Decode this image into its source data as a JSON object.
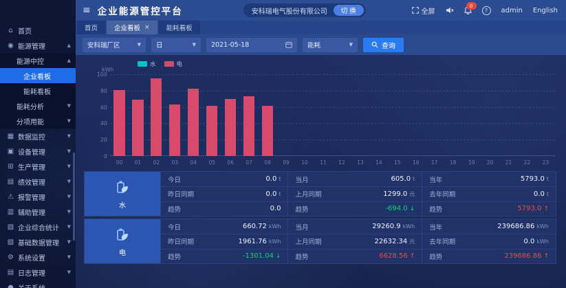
{
  "header": {
    "title": "企业能源管控平台",
    "company": "安科瑞电气股份有限公司",
    "switch_label": "切 换",
    "fullscreen_label": "全屏",
    "bell_badge": "0",
    "user": "admin",
    "language": "English"
  },
  "tabs": [
    {
      "id": "home",
      "label": "首页",
      "closable": false,
      "active": false
    },
    {
      "id": "enterprise-board",
      "label": "企业看板",
      "closable": true,
      "active": true
    },
    {
      "id": "energy-board",
      "label": "能耗看板",
      "closable": false,
      "active": false
    }
  ],
  "filters": {
    "area": "安科瑞厂区",
    "period": "日",
    "date": "2021-05-18",
    "type": "能耗",
    "search_label": "查询"
  },
  "sidebar": {
    "items": [
      {
        "id": "home",
        "label": "首页",
        "level": 1,
        "icon": "home",
        "caret": "",
        "active": false
      },
      {
        "id": "energy-mgmt",
        "label": "能源管理",
        "level": 1,
        "icon": "energy",
        "caret": "up",
        "active": false
      },
      {
        "id": "energy-center",
        "label": "能源中控",
        "level": 2,
        "icon": "",
        "caret": "up",
        "active": false
      },
      {
        "id": "enterprise-board",
        "label": "企业看板",
        "level": 3,
        "icon": "",
        "caret": "",
        "active": true
      },
      {
        "id": "energy-board",
        "label": "能耗看板",
        "level": 3,
        "icon": "",
        "caret": "",
        "active": false
      },
      {
        "id": "energy-analysis",
        "label": "能耗分析",
        "level": 2,
        "icon": "",
        "caret": "down",
        "active": false
      },
      {
        "id": "subitem-energy",
        "label": "分项用能",
        "level": 2,
        "icon": "",
        "caret": "down",
        "active": false
      },
      {
        "id": "data-monitor",
        "label": "数据监控",
        "level": 1,
        "icon": "monitor",
        "caret": "down",
        "active": false
      },
      {
        "id": "device-mgmt",
        "label": "设备管理",
        "level": 1,
        "icon": "device",
        "caret": "down",
        "active": false
      },
      {
        "id": "production-mgmt",
        "label": "生产管理",
        "level": 1,
        "icon": "production",
        "caret": "down",
        "active": false
      },
      {
        "id": "performance-mgmt",
        "label": "绩效管理",
        "level": 1,
        "icon": "performance",
        "caret": "down",
        "active": false
      },
      {
        "id": "alarm-mgmt",
        "label": "报警管理",
        "level": 1,
        "icon": "alarm",
        "caret": "down",
        "active": false
      },
      {
        "id": "assist-mgmt",
        "label": "辅助管理",
        "level": 1,
        "icon": "assist",
        "caret": "down",
        "active": false
      },
      {
        "id": "enterprise-stats",
        "label": "企业综合统计",
        "level": 1,
        "icon": "stats",
        "caret": "down",
        "active": false
      },
      {
        "id": "base-data-mgmt",
        "label": "基础数据管理",
        "level": 1,
        "icon": "database",
        "caret": "down",
        "active": false
      },
      {
        "id": "system-settings",
        "label": "系统设置",
        "level": 1,
        "icon": "settings",
        "caret": "down",
        "active": false
      },
      {
        "id": "log-mgmt",
        "label": "日志管理",
        "level": 1,
        "icon": "log",
        "caret": "down",
        "active": false
      },
      {
        "id": "about-system",
        "label": "关于系统",
        "level": 1,
        "icon": "about",
        "caret": "",
        "active": false
      }
    ]
  },
  "chart_data": {
    "type": "bar",
    "ylabel": "kWh",
    "ylim": [
      0,
      100
    ],
    "yticks": [
      0,
      20,
      40,
      60,
      80,
      100
    ],
    "grid": "dashed-horizontal",
    "legend_position": "top",
    "x": [
      "00",
      "01",
      "02",
      "03",
      "04",
      "05",
      "06",
      "07",
      "08",
      "09",
      "10",
      "11",
      "12",
      "13",
      "14",
      "15",
      "16",
      "17",
      "18",
      "19",
      "20",
      "21",
      "22",
      "23"
    ],
    "series": [
      {
        "name": "水",
        "color": "#00c2cc",
        "values": []
      },
      {
        "name": "电",
        "color": "#d84a6b",
        "values": [
          81,
          69,
          95,
          63,
          82,
          61,
          70,
          73,
          61
        ]
      }
    ]
  },
  "tables": [
    {
      "id": "water",
      "label": "水",
      "icon": "water-energy",
      "metrics": [
        {
          "label": "今日",
          "value": "0.0",
          "unit": "t",
          "dir": ""
        },
        {
          "label": "当月",
          "value": "605.0",
          "unit": "t",
          "dir": ""
        },
        {
          "label": "当年",
          "value": "5793.0",
          "unit": "t",
          "dir": ""
        },
        {
          "label": "昨日同期",
          "value": "0.0",
          "unit": "t",
          "dir": ""
        },
        {
          "label": "上月同期",
          "value": "1299.0",
          "unit": "元",
          "dir": ""
        },
        {
          "label": "去年同期",
          "value": "0.0",
          "unit": "t",
          "dir": ""
        },
        {
          "label": "趋势",
          "value": "0.0",
          "unit": "",
          "dir": ""
        },
        {
          "label": "趋势",
          "value": "-694.0",
          "unit": "",
          "dir": "down"
        },
        {
          "label": "趋势",
          "value": "5793.0",
          "unit": "",
          "dir": "up"
        }
      ]
    },
    {
      "id": "electricity",
      "label": "电",
      "icon": "electric-energy",
      "metrics": [
        {
          "label": "今日",
          "value": "660.72",
          "unit": "kWh",
          "dir": ""
        },
        {
          "label": "当月",
          "value": "29260.9",
          "unit": "kWh",
          "dir": ""
        },
        {
          "label": "当年",
          "value": "239686.86",
          "unit": "kWh",
          "dir": ""
        },
        {
          "label": "昨日同期",
          "value": "1961.76",
          "unit": "kWh",
          "dir": ""
        },
        {
          "label": "上月同期",
          "value": "22632.34",
          "unit": "元",
          "dir": ""
        },
        {
          "label": "去年同期",
          "value": "0.0",
          "unit": "kWh",
          "dir": ""
        },
        {
          "label": "趋势",
          "value": "-1301.04",
          "unit": "",
          "dir": "down"
        },
        {
          "label": "趋势",
          "value": "6628.56",
          "unit": "",
          "dir": "up"
        },
        {
          "label": "趋势",
          "value": "239686.86",
          "unit": "",
          "dir": "up"
        }
      ]
    }
  ],
  "colors": {
    "accent_blue": "#1f6ce8",
    "bar_red": "#d84a6b",
    "legend_teal": "#00c2cc",
    "trend_green": "#00d977",
    "trend_red": "#f5493d"
  }
}
